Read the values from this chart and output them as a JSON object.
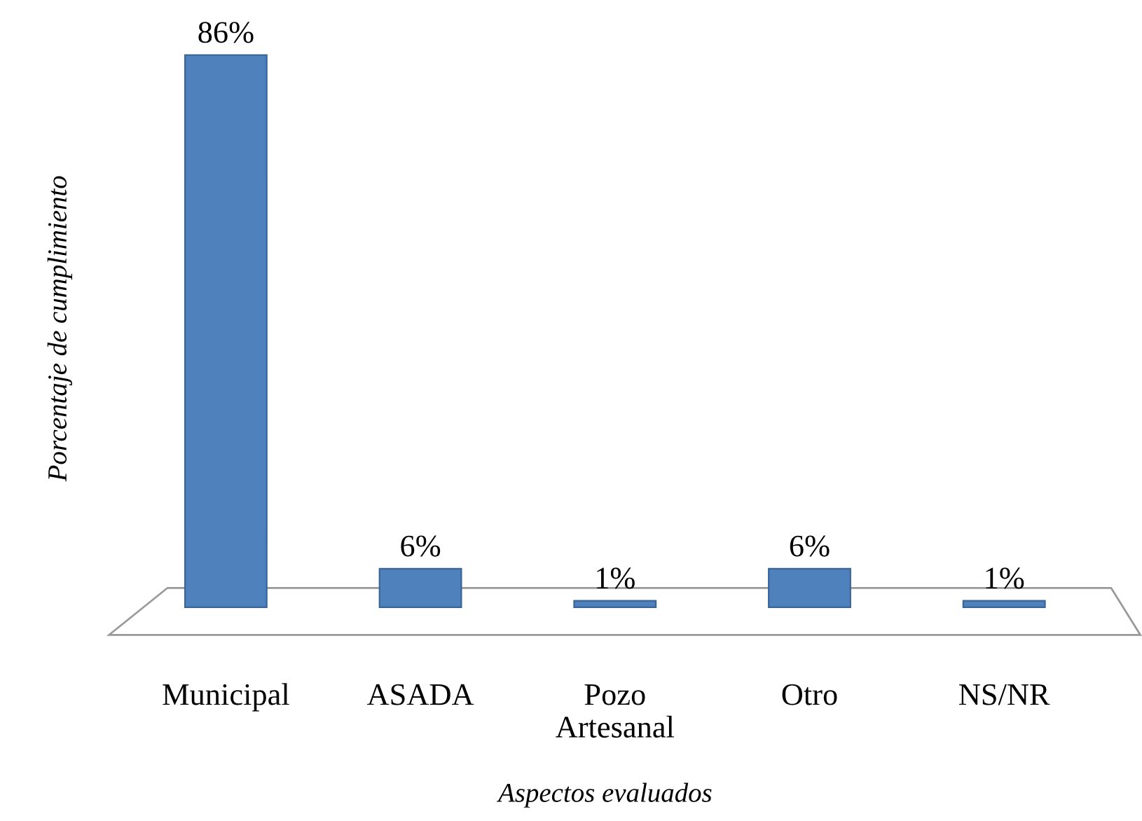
{
  "chart_data": {
    "type": "bar",
    "xlabel": "Aspectos evaluados",
    "ylabel": "Porcentaje de cumplimiento",
    "categories": [
      "Municipal",
      "ASADA",
      "Pozo\nArtesanal",
      "Otro",
      "NS/NR"
    ],
    "values": [
      86,
      6,
      1,
      6,
      1
    ],
    "value_labels": [
      "86%",
      "6%",
      "1%",
      "6%",
      "1%"
    ],
    "color": "#4f81bd",
    "grid": false,
    "legend": false
  }
}
